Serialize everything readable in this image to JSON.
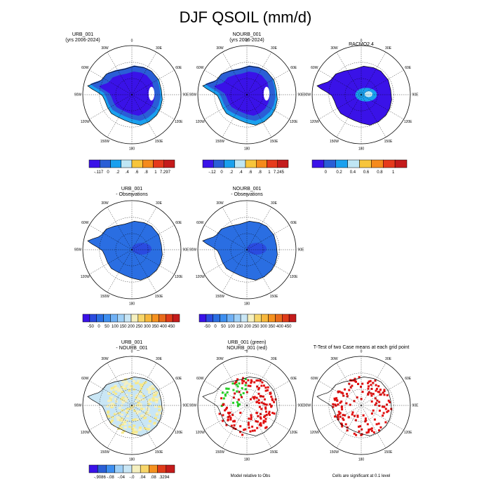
{
  "title": "DJF QSOIL (mm/d)",
  "lon_labels": [
    "0",
    "30E",
    "60E",
    "90E",
    "120E",
    "150E",
    "180",
    "150W",
    "120W",
    "90W",
    "60W",
    "30W"
  ],
  "chart_data": [
    {
      "type": "heatmap",
      "title_lines": [
        "URB_001",
        "(yrs 2006-2024)"
      ],
      "projection": "south-polar-stereographic",
      "colorbar": {
        "colors": [
          "#3a12e8",
          "#2a5ed6",
          "#1aa0ee",
          "#bfe6f4",
          "#f7c53c",
          "#f58a1c",
          "#e63a1c",
          "#c41b1b"
        ],
        "labels": [
          "-.117",
          "0",
          ".2",
          ".4",
          ".6",
          ".8",
          "1",
          "7.297"
        ]
      }
    },
    {
      "type": "heatmap",
      "title_lines": [
        "NOURB_001",
        "(yrs 2006-2024)"
      ],
      "projection": "south-polar-stereographic",
      "colorbar": {
        "colors": [
          "#3a12e8",
          "#2a5ed6",
          "#1aa0ee",
          "#bfe6f4",
          "#f7c53c",
          "#f58a1c",
          "#e63a1c",
          "#c41b1b"
        ],
        "labels": [
          "-.12",
          "0",
          ".2",
          ".4",
          ".6",
          ".8",
          "1",
          "7.245"
        ]
      }
    },
    {
      "type": "heatmap",
      "title_lines": [
        "RACMO2.4"
      ],
      "projection": "south-polar-stereographic",
      "colorbar": {
        "colors": [
          "#3a12e8",
          "#2a5ed6",
          "#1aa0ee",
          "#bfe6f4",
          "#f7c53c",
          "#f58a1c",
          "#e63a1c",
          "#c41b1b"
        ],
        "labels": [
          "0",
          "0.2",
          "0.4",
          "0.6",
          "0.8",
          "1"
        ]
      }
    },
    {
      "type": "heatmap",
      "title_lines": [
        "URB_001",
        "- Observations"
      ],
      "projection": "south-polar-stereographic",
      "colorbar": {
        "colors": [
          "#3a12e8",
          "#2a4be0",
          "#2a6ee2",
          "#3d8ef0",
          "#6fb0f5",
          "#9fd0f7",
          "#c9e6f5",
          "#f5f0c0",
          "#f7d66a",
          "#f7b73c",
          "#f5911f",
          "#e96b1c",
          "#e03c1a",
          "#c41b1b"
        ],
        "labels": [
          "-50",
          "0",
          "50",
          "100",
          "150",
          "200",
          "250",
          "300",
          "350",
          "400",
          "450"
        ]
      }
    },
    {
      "type": "heatmap",
      "title_lines": [
        "NOURB_001",
        "- Observations"
      ],
      "projection": "south-polar-stereographic",
      "colorbar": {
        "colors": [
          "#3a12e8",
          "#2a4be0",
          "#2a6ee2",
          "#3d8ef0",
          "#6fb0f5",
          "#9fd0f7",
          "#c9e6f5",
          "#f5f0c0",
          "#f7d66a",
          "#f7b73c",
          "#f5911f",
          "#e96b1c",
          "#e03c1a",
          "#c41b1b"
        ],
        "labels": [
          "-50",
          "0",
          "50",
          "100",
          "150",
          "200",
          "250",
          "300",
          "350",
          "400",
          "450"
        ]
      }
    },
    {
      "type": "heatmap",
      "title_lines": [
        "URB_001",
        "- NOURB_001"
      ],
      "projection": "south-polar-stereographic",
      "colorbar": {
        "colors": [
          "#3a12e8",
          "#2a5ed6",
          "#3d8ef0",
          "#9fd0f7",
          "#c9e6f5",
          "#f5f0c0",
          "#f7d66a",
          "#f5911f",
          "#e03c1a",
          "#c41b1b"
        ],
        "labels": [
          "-.9086",
          "-.08",
          "-.04",
          "-.0",
          ".04",
          ".08",
          ".3294"
        ]
      }
    },
    {
      "type": "heatmap",
      "title_lines": [
        "URB_001 (green)",
        "NOURB_001 (red)"
      ],
      "projection": "south-polar-stereographic",
      "footnote": "Model relative to Obs"
    },
    {
      "type": "heatmap",
      "title_lines": [
        "T-Test of two Case means at each grid point"
      ],
      "projection": "south-polar-stereographic",
      "footnote": "Cells are significant at 0.1 level"
    }
  ]
}
